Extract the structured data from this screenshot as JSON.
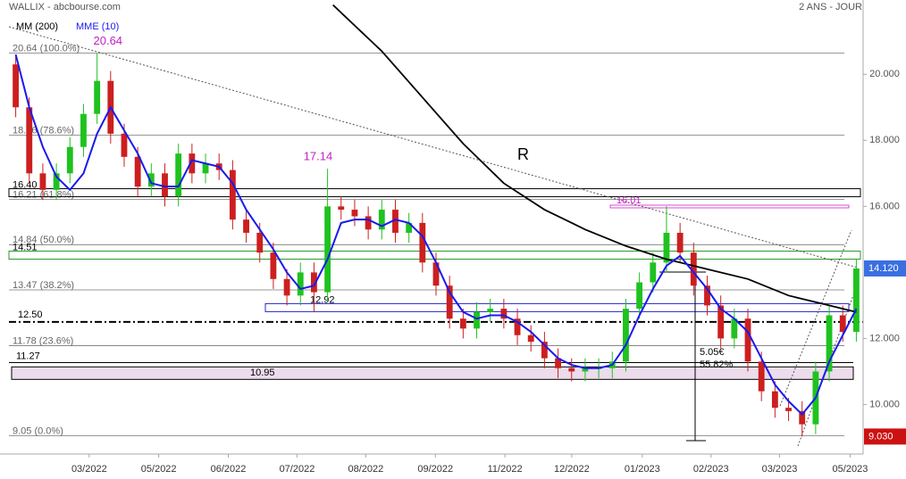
{
  "chart_data": {
    "type": "candlestick",
    "title": "WALLIX - abcbourse.com",
    "subtitle": "2 ANS - JOUR",
    "open": [
      20.3,
      19.0,
      17.0,
      16.5,
      17.0,
      17.8,
      18.8,
      19.8,
      18.2,
      17.5,
      16.6,
      17.0,
      16.3,
      17.6,
      17.0,
      17.3,
      17.1,
      15.6,
      15.2,
      14.6,
      13.8,
      13.3,
      14.0,
      13.4,
      16.0,
      15.9,
      15.7,
      15.3,
      15.9,
      15.2,
      15.5,
      14.3,
      13.6,
      12.6,
      12.3,
      12.8,
      12.9,
      12.6,
      12.1,
      11.9,
      11.4,
      11.1,
      11.0,
      11.1,
      11.1,
      11.3,
      12.9,
      13.7,
      14.3,
      15.2,
      14.6,
      13.6,
      13.0,
      12.0,
      12.6,
      11.3,
      10.4,
      9.9,
      9.8,
      9.4,
      11.0,
      12.7,
      12.2
    ],
    "high": [
      20.6,
      19.3,
      17.3,
      17.3,
      18.1,
      19.1,
      20.64,
      20.1,
      18.5,
      17.8,
      17.3,
      17.3,
      17.9,
      17.9,
      17.6,
      17.6,
      17.4,
      15.9,
      15.5,
      14.9,
      14.1,
      14.3,
      14.3,
      17.14,
      16.3,
      16.2,
      16.0,
      16.2,
      16.2,
      15.8,
      15.8,
      14.6,
      13.9,
      12.9,
      13.1,
      13.2,
      13.2,
      12.9,
      12.4,
      12.2,
      11.7,
      11.4,
      11.4,
      11.4,
      11.6,
      13.2,
      14.0,
      14.6,
      16.01,
      15.5,
      14.9,
      13.9,
      13.3,
      12.9,
      12.9,
      11.6,
      10.7,
      10.2,
      10.1,
      11.3,
      13.0,
      13.0,
      14.4
    ],
    "low": [
      18.7,
      16.7,
      16.2,
      16.2,
      16.7,
      17.5,
      18.5,
      17.9,
      17.2,
      16.3,
      16.3,
      16.0,
      16.0,
      16.7,
      16.7,
      16.8,
      15.3,
      14.9,
      14.3,
      13.5,
      13.0,
      13.0,
      12.8,
      13.1,
      15.6,
      15.4,
      15.0,
      15.0,
      14.9,
      14.9,
      14.0,
      13.3,
      12.3,
      12.0,
      12.0,
      12.5,
      12.3,
      11.8,
      11.6,
      11.1,
      10.8,
      10.7,
      10.7,
      10.8,
      10.8,
      11.0,
      12.6,
      13.4,
      14.0,
      14.3,
      13.3,
      12.7,
      11.7,
      11.7,
      11.0,
      10.1,
      9.6,
      9.5,
      9.03,
      9.1,
      10.7,
      11.9,
      11.9
    ],
    "close": [
      19.0,
      17.0,
      16.5,
      17.0,
      17.8,
      18.8,
      19.8,
      18.2,
      17.5,
      16.6,
      17.0,
      16.3,
      17.6,
      17.0,
      17.3,
      17.1,
      15.6,
      15.2,
      14.6,
      13.8,
      13.3,
      14.0,
      13.4,
      16.0,
      15.9,
      15.7,
      15.3,
      15.9,
      15.2,
      15.5,
      14.3,
      13.6,
      12.6,
      12.3,
      12.8,
      12.9,
      12.6,
      12.1,
      11.9,
      11.4,
      11.1,
      11.0,
      11.1,
      11.1,
      11.3,
      12.9,
      13.7,
      14.3,
      15.2,
      14.6,
      13.6,
      13.0,
      12.0,
      12.6,
      11.3,
      10.4,
      9.9,
      9.8,
      9.4,
      11.0,
      12.7,
      12.2,
      14.12
    ],
    "up_color": "#1fc21f",
    "down_color": "#cc1f1f",
    "series": [
      {
        "name": "MM (200)",
        "color": "#000000",
        "x": [
          23.4,
          27,
          30,
          33,
          36,
          39,
          42,
          45,
          48,
          51,
          54,
          57,
          60,
          62
        ],
        "values": [
          22.1,
          20.7,
          19.3,
          17.9,
          16.7,
          15.9,
          15.3,
          14.8,
          14.4,
          14.1,
          13.8,
          13.3,
          13.0,
          12.8
        ]
      },
      {
        "name": "MME (10)",
        "color": "#1a1aee",
        "x": [
          0,
          1,
          2,
          3,
          4,
          5,
          6,
          7,
          8,
          9,
          10,
          11,
          12,
          13,
          14,
          15,
          16,
          17,
          18,
          19,
          20,
          21,
          22,
          23,
          24,
          25,
          26,
          27,
          28,
          29,
          30,
          31,
          32,
          33,
          34,
          35,
          36,
          37,
          38,
          39,
          40,
          41,
          42,
          43,
          44,
          45,
          46,
          47,
          48,
          49,
          50,
          51,
          52,
          53,
          54,
          55,
          56,
          57,
          58,
          59,
          60,
          61,
          62
        ],
        "values": [
          20.6,
          19.0,
          17.8,
          16.9,
          16.5,
          17.0,
          18.2,
          19.0,
          18.3,
          17.6,
          16.7,
          16.6,
          16.6,
          17.4,
          17.3,
          17.2,
          16.7,
          15.9,
          15.3,
          14.7,
          14.0,
          13.5,
          13.6,
          14.4,
          15.5,
          15.6,
          15.6,
          15.4,
          15.6,
          15.5,
          15.1,
          14.3,
          13.4,
          12.8,
          12.6,
          12.7,
          12.7,
          12.5,
          12.2,
          11.8,
          11.4,
          11.2,
          11.1,
          11.1,
          11.2,
          11.8,
          12.7,
          13.5,
          14.2,
          14.5,
          14.0,
          13.5,
          12.9,
          12.6,
          12.2,
          11.4,
          10.6,
          10.1,
          9.7,
          10.2,
          11.3,
          12.1,
          12.9
        ]
      }
    ],
    "xlim": [
      -0.5,
      62.5
    ],
    "xticks": [
      {
        "value": 5.42,
        "label": "03/2022"
      },
      {
        "value": 10.55,
        "label": "05/2022"
      },
      {
        "value": 15.68,
        "label": "06/2022"
      },
      {
        "value": 20.75,
        "label": "07/2022"
      },
      {
        "value": 25.82,
        "label": "08/2022"
      },
      {
        "value": 30.95,
        "label": "09/2022"
      },
      {
        "value": 36.08,
        "label": "11/2022"
      },
      {
        "value": 41.01,
        "label": "12/2022"
      },
      {
        "value": 46.21,
        "label": "01/2023"
      },
      {
        "value": 51.28,
        "label": "02/2023"
      },
      {
        "value": 56.34,
        "label": "03/2023"
      },
      {
        "value": 61.54,
        "label": "05/2023"
      }
    ],
    "ylim": [
      8.5,
      22.25
    ],
    "yticks": [
      {
        "value": 10,
        "label": "10.000"
      },
      {
        "value": 12,
        "label": "12.000"
      },
      {
        "value": 16,
        "label": "16.000"
      },
      {
        "value": 18,
        "label": "18.000"
      },
      {
        "value": 20,
        "label": "20.000"
      }
    ],
    "levels": [
      {
        "label": "20.64 (100.0%)",
        "value": 20.64,
        "kind": "fib"
      },
      {
        "label": "18.16 (78.6%)",
        "value": 18.16,
        "kind": "fib"
      },
      {
        "label": "16.21 (61.8%)",
        "value": 16.21,
        "kind": "fib"
      },
      {
        "label": "14.84 (50.0%)",
        "value": 14.84,
        "kind": "fib"
      },
      {
        "label": "13.47 (38.2%)",
        "value": 13.47,
        "kind": "fib"
      },
      {
        "label": "11.78 (23.6%)",
        "value": 11.78,
        "kind": "fib"
      },
      {
        "label": "9.05 (0.0%)",
        "value": 9.05,
        "kind": "fib"
      },
      {
        "label": "16.40",
        "value": 16.4,
        "kind": "zone",
        "color": "#000000"
      },
      {
        "label": "14.51",
        "value": 14.51,
        "kind": "zone",
        "color": "#2a9a2a"
      },
      {
        "label": "12.92",
        "value": 12.92,
        "kind": "zone",
        "color": "#2222cc"
      },
      {
        "label": "12.50",
        "value": 12.5,
        "kind": "dashdot",
        "color": "#000000"
      },
      {
        "label": "11.27",
        "value": 11.27,
        "kind": "line",
        "color": "#000000"
      },
      {
        "label": "10.95",
        "value": 10.95,
        "kind": "box",
        "color": "#000000"
      },
      {
        "label": "16.01",
        "value": 16.01,
        "kind": "magenta",
        "color": "#cc22cc"
      }
    ],
    "markers": [
      {
        "label": "20.64",
        "value": 20.64,
        "x": 6.8
      },
      {
        "label": "17.14",
        "value": 17.14,
        "x": 22.3
      }
    ],
    "last_tag": {
      "value": 14.12,
      "label": "14.120",
      "color": "#3a6fe0"
    },
    "low_tag": {
      "value": 9.03,
      "label": "9.030",
      "color": "#cc1111"
    },
    "annotations": [
      "R",
      "5.05€",
      "55.82%"
    ]
  }
}
